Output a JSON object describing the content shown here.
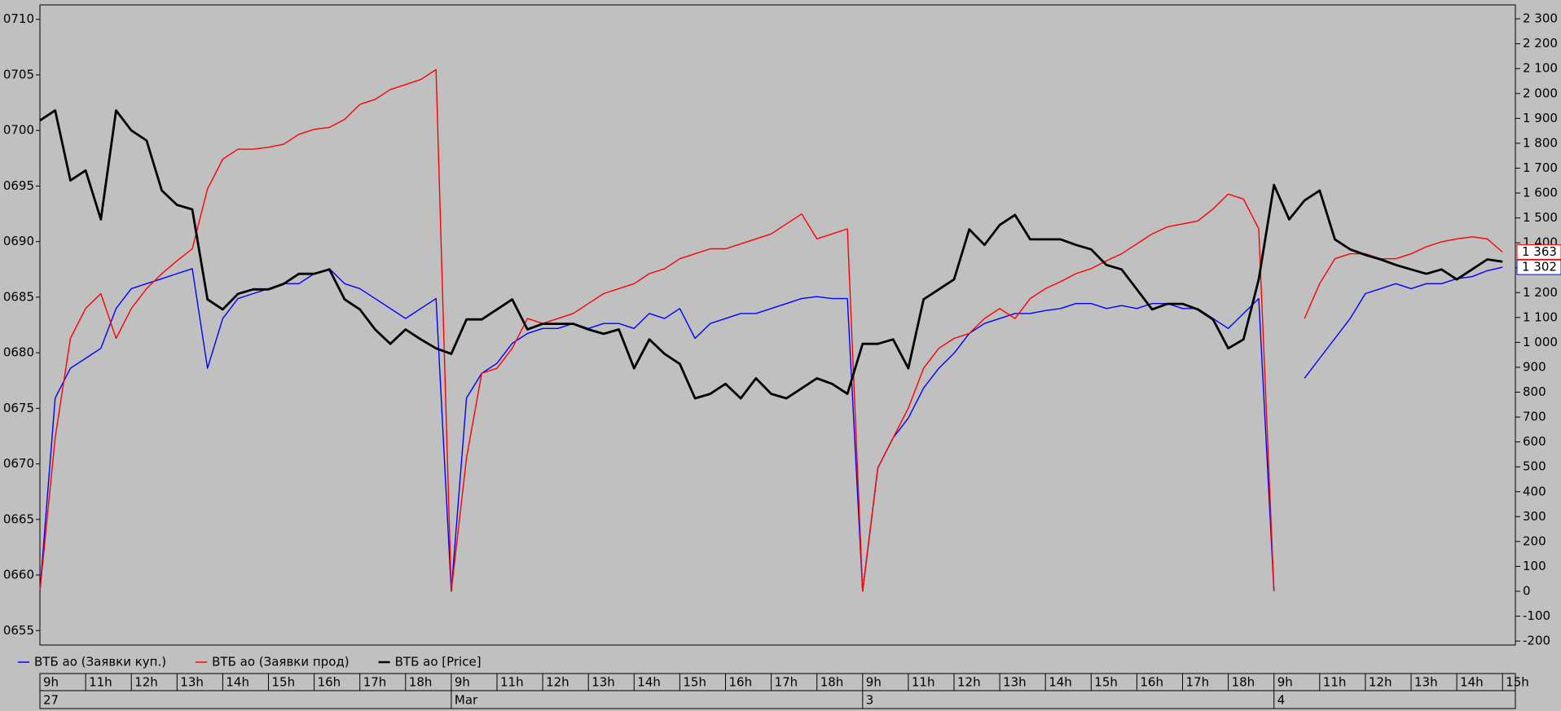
{
  "chart_data": {
    "type": "line",
    "categories": [
      "9h",
      null,
      null,
      "11h",
      null,
      null,
      "12h",
      null,
      null,
      "13h",
      null,
      null,
      "14h",
      null,
      null,
      "15h",
      null,
      null,
      "16h",
      null,
      null,
      "17h",
      null,
      null,
      "18h",
      null,
      null,
      "9h",
      null,
      null,
      "11h",
      null,
      null,
      "12h",
      null,
      null,
      "13h",
      null,
      null,
      "14h",
      null,
      null,
      "15h",
      null,
      null,
      "16h",
      null,
      null,
      "17h",
      null,
      null,
      "18h",
      null,
      null,
      "9h",
      null,
      null,
      "11h",
      null,
      null,
      "12h",
      null,
      null,
      "13h",
      null,
      null,
      "14h",
      null,
      null,
      "15h",
      null,
      null,
      "16h",
      null,
      null,
      "17h",
      null,
      null,
      "18h",
      null,
      null,
      "9h",
      null,
      null,
      "11h",
      null,
      null,
      "12h",
      null,
      null,
      "13h",
      null,
      null,
      "14h",
      null,
      null,
      "15h"
    ],
    "day_labels": [
      "27",
      "Mar",
      "3",
      "4"
    ],
    "series": [
      {
        "name": "ВТБ ао (Заявки куп.)",
        "color": "#0000ff",
        "axis": "y2",
        "last_label": "1 302",
        "values": [
          0,
          776,
          896,
          936,
          976,
          1136,
          1216,
          1236,
          1256,
          1276,
          1296,
          896,
          1096,
          1176,
          1196,
          1216,
          1236,
          1236,
          1276,
          1296,
          1236,
          1216,
          1176,
          1136,
          1096,
          1136,
          1176,
          0,
          776,
          876,
          916,
          996,
          1036,
          1056,
          1056,
          1076,
          1056,
          1076,
          1076,
          1056,
          1116,
          1096,
          1136,
          1016,
          1076,
          1096,
          1116,
          1116,
          1136,
          1156,
          1176,
          1184,
          1176,
          1176,
          0,
          496,
          616,
          696,
          816,
          896,
          956,
          1036,
          1076,
          1096,
          1116,
          1116,
          1128,
          1136,
          1156,
          1156,
          1136,
          1148,
          1136,
          1156,
          1156,
          1136,
          1136,
          1096,
          1056,
          1116,
          1176,
          0,
          null,
          856,
          936,
          1016,
          1096,
          1196,
          1216,
          1236,
          1216,
          1236,
          1236,
          1256,
          1264,
          1288,
          1302
        ]
      },
      {
        "name": "ВТБ ао (Заявки прод)",
        "color": "#ff0000",
        "axis": "y2",
        "last_label": "1 363",
        "values": [
          0,
          616,
          1016,
          1136,
          1196,
          1016,
          1136,
          1216,
          1276,
          1328,
          1376,
          1616,
          1736,
          1776,
          1776,
          1784,
          1796,
          1836,
          1856,
          1864,
          1896,
          1956,
          1976,
          2016,
          2036,
          2056,
          2096,
          0,
          536,
          876,
          896,
          976,
          1096,
          1076,
          1096,
          1116,
          1156,
          1196,
          1216,
          1236,
          1276,
          1296,
          1336,
          1356,
          1376,
          1376,
          1396,
          1416,
          1436,
          1476,
          1516,
          1416,
          1436,
          1456,
          0,
          496,
          616,
          736,
          896,
          976,
          1016,
          1036,
          1096,
          1136,
          1096,
          1176,
          1216,
          1244,
          1276,
          1296,
          1328,
          1356,
          1396,
          1436,
          1464,
          1476,
          1488,
          1536,
          1596,
          1576,
          1456,
          0,
          null,
          1096,
          1236,
          1336,
          1356,
          1356,
          1336,
          1336,
          1356,
          1384,
          1404,
          1416,
          1424,
          1416,
          1363
        ]
      },
      {
        "name": "ВТБ ао [Price]",
        "color": "#000000",
        "axis": "y",
        "values": [
          0.07009,
          0.07018,
          0.06955,
          0.06964,
          0.0692,
          0.07018,
          0.07,
          0.06991,
          0.06946,
          0.06933,
          0.06929,
          0.06848,
          0.06839,
          0.06853,
          0.06857,
          0.06857,
          0.06862,
          0.06871,
          0.06871,
          0.06875,
          0.06848,
          0.06839,
          0.06821,
          0.06808,
          0.06821,
          0.06812,
          0.06804,
          0.06799,
          0.0683,
          0.0683,
          0.06839,
          0.06848,
          0.06821,
          0.06826,
          0.06826,
          0.06826,
          0.06821,
          0.06817,
          0.06821,
          0.06786,
          0.06812,
          0.06799,
          0.0679,
          0.06759,
          0.06763,
          0.06772,
          0.06759,
          0.06777,
          0.06763,
          0.06759,
          0.06768,
          0.06777,
          0.06772,
          0.06763,
          0.06808,
          0.06808,
          0.06812,
          0.06786,
          0.06848,
          0.06857,
          0.06866,
          0.06911,
          0.06897,
          0.06915,
          0.06924,
          0.06902,
          0.06902,
          0.06902,
          0.06897,
          0.06893,
          0.06879,
          0.06875,
          0.06857,
          0.06839,
          0.06844,
          0.06844,
          0.06839,
          0.0683,
          0.06804,
          0.06812,
          0.06866,
          0.06951,
          0.0692,
          0.06937,
          0.06946,
          0.06902,
          0.06893,
          0.06888,
          0.06884,
          0.06879,
          0.06875,
          0.06871,
          0.06875,
          0.06866,
          0.06875,
          0.06884,
          0.06882
        ]
      }
    ],
    "ylim": [
      0.06537,
      0.07113
    ],
    "yticks": [
      {
        "value": 0.0655,
        "label": "0655"
      },
      {
        "value": 0.066,
        "label": "0660"
      },
      {
        "value": 0.0665,
        "label": "0665"
      },
      {
        "value": 0.067,
        "label": "0670"
      },
      {
        "value": 0.0675,
        "label": "0675"
      },
      {
        "value": 0.068,
        "label": "0680"
      },
      {
        "value": 0.0685,
        "label": "0685"
      },
      {
        "value": 0.069,
        "label": "0690"
      },
      {
        "value": 0.0695,
        "label": "0695"
      },
      {
        "value": 0.07,
        "label": "0700"
      },
      {
        "value": 0.0705,
        "label": "0705"
      },
      {
        "value": 0.071,
        "label": "0710"
      }
    ],
    "y2lim": [
      -216,
      2356
    ],
    "y2ticks": [
      -200,
      -100,
      0,
      100,
      200,
      300,
      400,
      500,
      600,
      700,
      800,
      900,
      {
        "value": 1000,
        "label": "1 000"
      },
      {
        "value": 1100,
        "label": "1 100"
      },
      {
        "value": 1200,
        "label": "1 200"
      },
      {
        "value": 1300,
        "label": "1 300"
      },
      {
        "value": 1400,
        "label": "1 400"
      },
      {
        "value": 1500,
        "label": "1 500"
      },
      {
        "value": 1600,
        "label": "1 600"
      },
      {
        "value": 1700,
        "label": "1 700"
      },
      {
        "value": 1800,
        "label": "1 800"
      },
      {
        "value": 1900,
        "label": "1 900"
      },
      {
        "value": 2000,
        "label": "2 000"
      },
      {
        "value": 2100,
        "label": "2 100"
      },
      {
        "value": 2200,
        "label": "2 200"
      },
      {
        "value": 2300,
        "label": "2 300"
      }
    ],
    "grid": false,
    "legend": "bottom-left"
  }
}
